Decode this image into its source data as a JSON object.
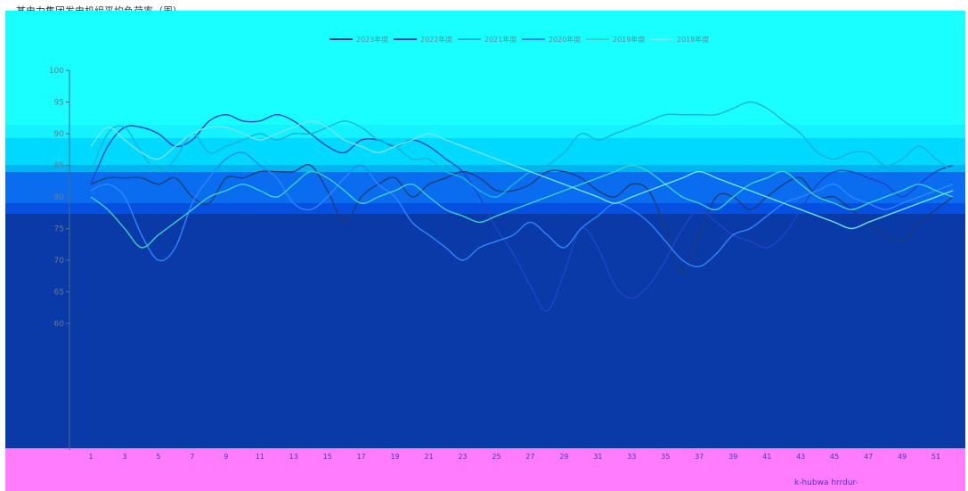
{
  "title": "某电力集团发电机组平均负荷率（周）",
  "colors": {
    "band_cyan": "#19ffff",
    "band_cyan2": "#14f2ff",
    "band_sky": "#00d9ff",
    "band_blue": "#00b4f0",
    "band_mid": "#0a6df0",
    "band_deep": "#0550e0",
    "band_navy": "#0a3aa8",
    "footer_pink": "#ff7cff"
  },
  "footer_note": "k-hubwa hrrdur-",
  "chart_data": {
    "type": "line",
    "title": "某电力集团发电机组平均负荷率（周）",
    "xlabel": "",
    "ylabel": "",
    "ylim": [
      40,
      100
    ],
    "yticks": [
      60,
      65,
      70,
      75,
      80,
      85,
      90,
      95,
      100
    ],
    "grid": false,
    "legend_position": "top-center",
    "x": [
      "1",
      "2",
      "3",
      "4",
      "5",
      "6",
      "7",
      "8",
      "9",
      "10",
      "11",
      "12",
      "13",
      "14",
      "15",
      "16",
      "17",
      "18",
      "19",
      "20",
      "21",
      "22",
      "23",
      "24",
      "25",
      "26",
      "27",
      "28",
      "29",
      "30",
      "31",
      "32",
      "33",
      "34",
      "35",
      "36",
      "37",
      "38",
      "39",
      "40",
      "41",
      "42",
      "43",
      "44",
      "45",
      "46",
      "47",
      "48",
      "49",
      "50",
      "51",
      "52"
    ],
    "series": [
      {
        "name": "2023年度",
        "color": "#1f3d7a",
        "values": [
          82,
          83,
          83,
          83,
          82,
          83,
          80,
          79,
          83,
          83,
          84,
          84,
          84,
          85,
          81,
          76,
          80,
          82,
          83,
          80,
          82,
          83,
          84,
          83,
          81,
          81,
          82,
          84,
          84,
          83,
          81,
          80,
          82,
          81,
          75,
          68,
          74,
          80,
          80,
          78,
          80,
          82,
          83,
          80,
          80,
          78,
          76,
          74,
          73,
          76,
          78,
          80
        ]
      },
      {
        "name": "2022年度",
        "color": "#1e44c8",
        "values": [
          82,
          88,
          91,
          91,
          90,
          88,
          89,
          92,
          93,
          92,
          92,
          93,
          92,
          90,
          88,
          87,
          89,
          89,
          88,
          89,
          88,
          86,
          84,
          80,
          75,
          71,
          66,
          62,
          68,
          75,
          72,
          66,
          64,
          66,
          70,
          75,
          78,
          76,
          74,
          73,
          72,
          74,
          78,
          82,
          84,
          84,
          83,
          82,
          80,
          82,
          84,
          85
        ]
      },
      {
        "name": "2021年度",
        "color": "#1ab3d9",
        "values": [
          84,
          90,
          91,
          87,
          84,
          86,
          90,
          87,
          88,
          89,
          90,
          89,
          90,
          90,
          91,
          92,
          91,
          89,
          88,
          86,
          86,
          84,
          83,
          81,
          80,
          82,
          84,
          85,
          87,
          90,
          89,
          90,
          91,
          92,
          93,
          93,
          93,
          93,
          94,
          95,
          94,
          92,
          90,
          87,
          86,
          87,
          87,
          85,
          86,
          88,
          86,
          84
        ]
      },
      {
        "name": "2020年度",
        "color": "#2e86ff",
        "values": [
          81,
          82,
          80,
          74,
          70,
          72,
          79,
          83,
          86,
          87,
          85,
          83,
          79,
          78,
          80,
          83,
          85,
          82,
          80,
          76,
          74,
          72,
          70,
          72,
          73,
          74,
          76,
          74,
          72,
          75,
          77,
          79,
          78,
          76,
          73,
          70,
          69,
          71,
          74,
          75,
          77,
          79,
          80,
          81,
          82,
          80,
          79,
          78,
          79,
          80,
          81,
          82
        ]
      },
      {
        "name": "2019年度",
        "color": "#3ad1c8",
        "values": [
          80,
          78,
          75,
          72,
          74,
          76,
          78,
          80,
          81,
          82,
          81,
          80,
          82,
          84,
          83,
          81,
          79,
          80,
          81,
          82,
          80,
          78,
          77,
          76,
          77,
          78,
          79,
          80,
          81,
          82,
          83,
          84,
          85,
          84,
          82,
          80,
          79,
          78,
          80,
          82,
          83,
          84,
          82,
          80,
          79,
          78,
          79,
          80,
          81,
          82,
          81,
          80
        ]
      },
      {
        "name": "2018年度",
        "color": "#6fe6f2",
        "values": [
          88,
          91,
          89,
          87,
          86,
          88,
          90,
          91,
          91,
          90,
          89,
          90,
          91,
          92,
          91,
          89,
          88,
          87,
          88,
          89,
          90,
          89,
          88,
          87,
          86,
          85,
          84,
          83,
          82,
          81,
          80,
          79,
          80,
          81,
          82,
          83,
          84,
          83,
          82,
          81,
          80,
          79,
          78,
          77,
          76,
          75,
          76,
          77,
          78,
          79,
          80,
          81
        ]
      }
    ]
  }
}
